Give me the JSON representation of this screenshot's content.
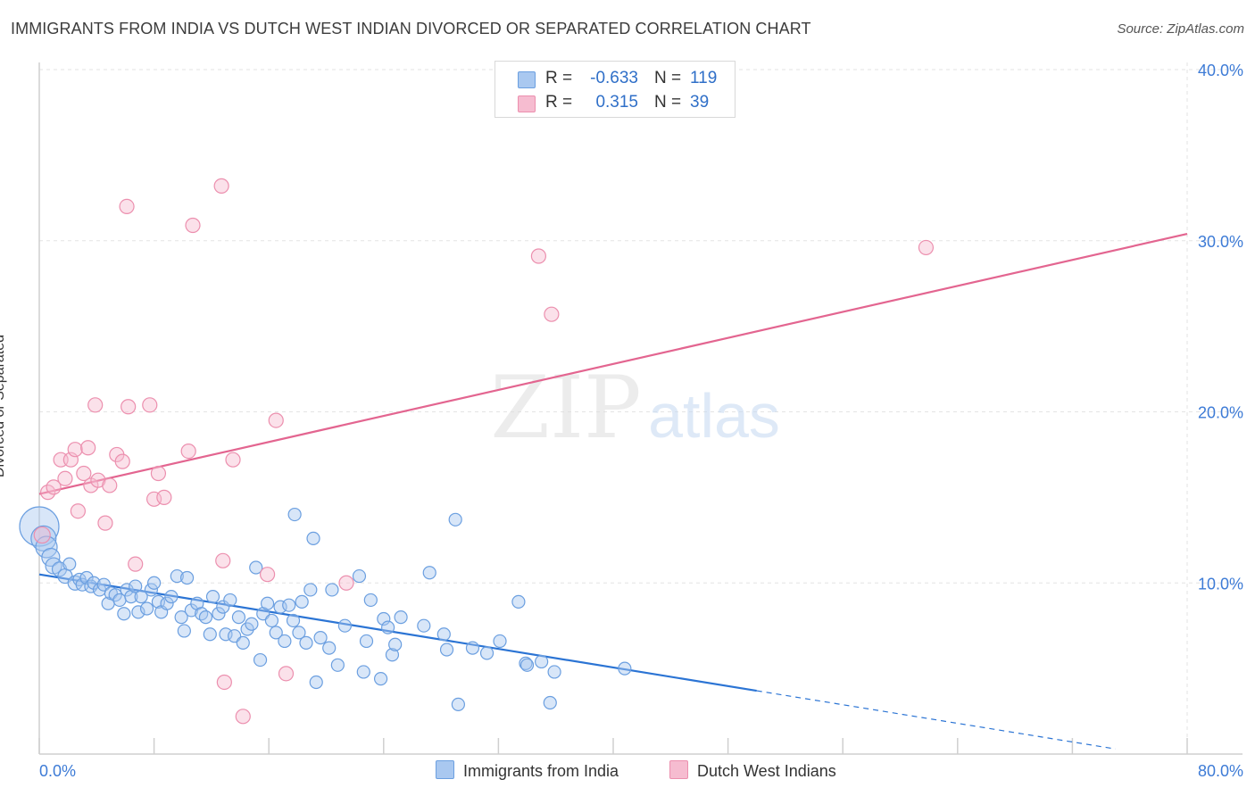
{
  "title": "IMMIGRANTS FROM INDIA VS DUTCH WEST INDIAN DIVORCED OR SEPARATED CORRELATION CHART",
  "source": "Source: ZipAtlas.com",
  "watermark": {
    "zip": "ZIP",
    "atlas": "atlas"
  },
  "colors": {
    "blue_fill": "#a9c8f0",
    "blue_stroke": "#6b9fe0",
    "blue_line": "#2b74d4",
    "pink_fill": "#f6bcd0",
    "pink_stroke": "#ec8fae",
    "pink_line": "#e36590",
    "axis_label": "#3d7bd6",
    "grid": "#e3e3e3"
  },
  "legend": {
    "rows": [
      {
        "r_label": "R =",
        "r_value": "-0.633",
        "n_label": "N =",
        "n_value": "119",
        "color": "#a9c8f0",
        "border": "#6b9fe0"
      },
      {
        "r_label": "R =",
        "r_value": "0.315",
        "n_label": "N =",
        "n_value": "39",
        "color": "#f6bcd0",
        "border": "#ec8fae"
      }
    ]
  },
  "bottom_legend": {
    "items": [
      {
        "label": "Immigrants from India",
        "color": "#a9c8f0",
        "border": "#6b9fe0"
      },
      {
        "label": "Dutch West Indians",
        "color": "#f6bcd0",
        "border": "#ec8fae"
      }
    ]
  },
  "chart_data": {
    "type": "scatter",
    "title": "IMMIGRANTS FROM INDIA VS DUTCH WEST INDIAN DIVORCED OR SEPARATED CORRELATION CHART",
    "xlabel": "",
    "ylabel": "Divorced or Separated",
    "xlim": [
      0,
      80
    ],
    "ylim": [
      0,
      40
    ],
    "x_tick_labels": [
      "0.0%",
      "80.0%"
    ],
    "y_ticks": [
      10,
      20,
      30,
      40
    ],
    "y_tick_labels": [
      "10.0%",
      "20.0%",
      "30.0%",
      "40.0%"
    ],
    "grid": true,
    "legend_position": "top-center",
    "series": [
      {
        "name": "Immigrants from India",
        "r": -0.633,
        "n": 119,
        "trend": {
          "x0": 0,
          "y0": 10.5,
          "x1": 50,
          "y1": 3.7,
          "dashed_to_x": 75,
          "dashed_to_y": 0.3
        },
        "points": [
          [
            0.0,
            13.3,
            22
          ],
          [
            0.3,
            12.6,
            14
          ],
          [
            0.5,
            12.1,
            12
          ],
          [
            0.8,
            11.5,
            10
          ],
          [
            1.0,
            11.0,
            9
          ],
          [
            1.4,
            10.8,
            8
          ],
          [
            1.8,
            10.4,
            8
          ],
          [
            2.1,
            11.1,
            7
          ],
          [
            2.5,
            10.0,
            8
          ],
          [
            2.8,
            10.2,
            7
          ],
          [
            3.0,
            9.9,
            7
          ],
          [
            3.3,
            10.3,
            7
          ],
          [
            3.6,
            9.8,
            7
          ],
          [
            3.8,
            10.0,
            7
          ],
          [
            4.2,
            9.6,
            7
          ],
          [
            4.5,
            9.9,
            7
          ],
          [
            4.8,
            8.8,
            7
          ],
          [
            5.0,
            9.4,
            7
          ],
          [
            5.3,
            9.3,
            7
          ],
          [
            5.6,
            9.0,
            7
          ],
          [
            5.9,
            8.2,
            7
          ],
          [
            6.1,
            9.6,
            7
          ],
          [
            6.4,
            9.2,
            7
          ],
          [
            6.7,
            9.8,
            7
          ],
          [
            6.9,
            8.3,
            7
          ],
          [
            7.1,
            9.2,
            7
          ],
          [
            7.5,
            8.5,
            7
          ],
          [
            7.8,
            9.6,
            7
          ],
          [
            8.0,
            10.0,
            7
          ],
          [
            8.3,
            8.9,
            7
          ],
          [
            8.5,
            8.3,
            7
          ],
          [
            8.9,
            8.8,
            7
          ],
          [
            9.2,
            9.2,
            7
          ],
          [
            9.6,
            10.4,
            7
          ],
          [
            9.9,
            8.0,
            7
          ],
          [
            10.1,
            7.2,
            7
          ],
          [
            10.3,
            10.3,
            7
          ],
          [
            10.6,
            8.4,
            7
          ],
          [
            11.0,
            8.8,
            7
          ],
          [
            11.3,
            8.2,
            7
          ],
          [
            11.6,
            8.0,
            7
          ],
          [
            11.9,
            7.0,
            7
          ],
          [
            12.1,
            9.2,
            7
          ],
          [
            12.5,
            8.2,
            7
          ],
          [
            12.8,
            8.6,
            7
          ],
          [
            13.0,
            7.0,
            7
          ],
          [
            13.3,
            9.0,
            7
          ],
          [
            13.6,
            6.9,
            7
          ],
          [
            13.9,
            8.0,
            7
          ],
          [
            14.2,
            6.5,
            7
          ],
          [
            14.5,
            7.3,
            7
          ],
          [
            14.8,
            7.6,
            7
          ],
          [
            15.1,
            10.9,
            7
          ],
          [
            15.4,
            5.5,
            7
          ],
          [
            15.6,
            8.2,
            7
          ],
          [
            15.9,
            8.8,
            7
          ],
          [
            16.2,
            7.8,
            7
          ],
          [
            16.5,
            7.1,
            7
          ],
          [
            16.8,
            8.6,
            7
          ],
          [
            17.1,
            6.6,
            7
          ],
          [
            17.4,
            8.7,
            7
          ],
          [
            17.7,
            7.8,
            7
          ],
          [
            17.8,
            14.0,
            7
          ],
          [
            18.1,
            7.1,
            7
          ],
          [
            18.3,
            8.9,
            7
          ],
          [
            18.6,
            6.5,
            7
          ],
          [
            18.9,
            9.6,
            7
          ],
          [
            19.1,
            12.6,
            7
          ],
          [
            19.3,
            4.2,
            7
          ],
          [
            19.6,
            6.8,
            7
          ],
          [
            20.2,
            6.2,
            7
          ],
          [
            20.4,
            9.6,
            7
          ],
          [
            20.8,
            5.2,
            7
          ],
          [
            21.3,
            7.5,
            7
          ],
          [
            22.3,
            10.4,
            7
          ],
          [
            22.6,
            4.8,
            7
          ],
          [
            22.8,
            6.6,
            7
          ],
          [
            23.1,
            9.0,
            7
          ],
          [
            23.8,
            4.4,
            7
          ],
          [
            24.0,
            7.9,
            7
          ],
          [
            24.3,
            7.4,
            7
          ],
          [
            24.6,
            5.8,
            7
          ],
          [
            24.8,
            6.4,
            7
          ],
          [
            25.2,
            8.0,
            7
          ],
          [
            26.8,
            7.5,
            7
          ],
          [
            27.2,
            10.6,
            7
          ],
          [
            28.2,
            7.0,
            7
          ],
          [
            28.4,
            6.1,
            7
          ],
          [
            29.0,
            13.7,
            7
          ],
          [
            29.2,
            2.9,
            7
          ],
          [
            30.2,
            6.2,
            7
          ],
          [
            31.2,
            5.9,
            7
          ],
          [
            32.1,
            6.6,
            7
          ],
          [
            33.4,
            8.9,
            7
          ],
          [
            33.9,
            5.3,
            7
          ],
          [
            34.0,
            5.2,
            7
          ],
          [
            35.0,
            5.4,
            7
          ],
          [
            35.6,
            3.0,
            7
          ],
          [
            35.9,
            4.8,
            7
          ],
          [
            40.8,
            5.0,
            7
          ]
        ]
      },
      {
        "name": "Dutch West Indians",
        "r": 0.315,
        "n": 39,
        "trend": {
          "x0": 0,
          "y0": 15.2,
          "x1": 80,
          "y1": 30.4
        },
        "points": [
          [
            0.2,
            12.8,
            9
          ],
          [
            0.6,
            15.3,
            8
          ],
          [
            1.0,
            15.6,
            8
          ],
          [
            1.5,
            17.2,
            8
          ],
          [
            1.8,
            16.1,
            8
          ],
          [
            2.2,
            17.2,
            8
          ],
          [
            2.5,
            17.8,
            8
          ],
          [
            2.7,
            14.2,
            8
          ],
          [
            3.1,
            16.4,
            8
          ],
          [
            3.4,
            17.9,
            8
          ],
          [
            3.6,
            15.7,
            8
          ],
          [
            3.9,
            20.4,
            8
          ],
          [
            4.1,
            16.0,
            8
          ],
          [
            4.6,
            13.5,
            8
          ],
          [
            4.9,
            15.7,
            8
          ],
          [
            5.4,
            17.5,
            8
          ],
          [
            5.8,
            17.1,
            8
          ],
          [
            6.2,
            20.3,
            8
          ],
          [
            6.1,
            32.0,
            8
          ],
          [
            6.7,
            11.1,
            8
          ],
          [
            7.7,
            20.4,
            8
          ],
          [
            8.0,
            14.9,
            8
          ],
          [
            8.3,
            16.4,
            8
          ],
          [
            8.7,
            15.0,
            8
          ],
          [
            10.4,
            17.7,
            8
          ],
          [
            10.7,
            30.9,
            8
          ],
          [
            12.7,
            33.2,
            8
          ],
          [
            12.9,
            4.2,
            8
          ],
          [
            12.8,
            11.3,
            8
          ],
          [
            13.5,
            17.2,
            8
          ],
          [
            14.2,
            2.2,
            8
          ],
          [
            15.9,
            10.5,
            8
          ],
          [
            16.5,
            19.5,
            8
          ],
          [
            17.2,
            4.7,
            8
          ],
          [
            21.4,
            10.0,
            8
          ],
          [
            34.8,
            29.1,
            8
          ],
          [
            35.7,
            25.7,
            8
          ],
          [
            61.8,
            29.6,
            8
          ]
        ]
      }
    ]
  }
}
